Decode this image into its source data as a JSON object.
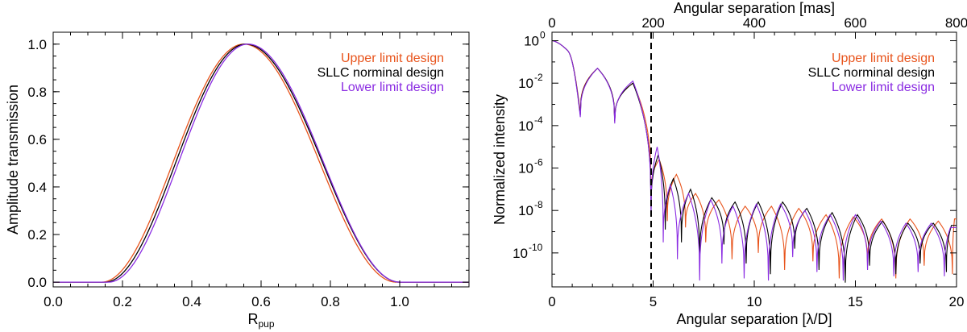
{
  "colors": {
    "upper": "#e8541c",
    "nominal": "#000000",
    "lower": "#8a2be2"
  },
  "chart_data": [
    {
      "type": "line",
      "xlabel": "R",
      "xlabel_sub": "pup",
      "ylabel": "Amplitude transmission",
      "xlim": [
        0.0,
        1.2
      ],
      "ylim": [
        -0.02,
        1.05
      ],
      "x_ticks": [
        0.0,
        0.2,
        0.4,
        0.6,
        0.8,
        1.0
      ],
      "x_tick_labels": [
        "0.0",
        "0.2",
        "0.4",
        "0.6",
        "0.8",
        "1.0"
      ],
      "y_ticks": [
        0.0,
        0.2,
        0.4,
        0.6,
        0.8,
        1.0
      ],
      "y_tick_labels": [
        "0.0",
        "0.2",
        "0.4",
        "0.6",
        "0.8",
        "1.0"
      ],
      "legend_position": "top-right",
      "series": [
        {
          "name": "Upper limit design",
          "color_key": "upper",
          "start": 0.14,
          "peak": 0.55,
          "end": 0.99
        },
        {
          "name": "SLLC norminal design",
          "color_key": "nominal",
          "start": 0.15,
          "peak": 0.556,
          "end": 1.0
        },
        {
          "name": "Lower limit design",
          "color_key": "lower",
          "start": 0.16,
          "peak": 0.562,
          "end": 1.0
        }
      ]
    },
    {
      "type": "line",
      "xlabel": "Angular separation [λ/D]",
      "x2label": "Angular separation [mas]",
      "ylabel": "Normalized intensity",
      "y_scale": "log",
      "xlim": [
        0,
        20
      ],
      "ylim_log10": [
        -11.6,
        0.4
      ],
      "x_ticks": [
        0,
        5,
        10,
        15,
        20
      ],
      "x_tick_labels": [
        "0",
        "5",
        "10",
        "15",
        "20"
      ],
      "x2_ticks_lambdaD": [
        0,
        5,
        10,
        15,
        20
      ],
      "x2_tick_labels": [
        "0",
        "200",
        "400",
        "600",
        "800"
      ],
      "y_ticks_log10": [
        0,
        -2,
        -4,
        -6,
        -8,
        -10
      ],
      "y_tick_mantissa": "10",
      "y_tick_exponents": [
        "0",
        "-2",
        "-4",
        "-6",
        "-8",
        "-10"
      ],
      "vline_x": 4.9,
      "legend_position": "top-right",
      "series": [
        {
          "name": "Upper limit design",
          "color_key": "upper",
          "nulls": [
            1.4,
            3.1,
            4.9,
            5.7,
            6.6,
            7.6,
            8.9,
            10.2,
            11.5,
            12.9,
            14.2,
            15.6,
            17.0,
            18.4,
            19.8
          ],
          "null_depth": [
            -3.4,
            -3.8,
            -7.2,
            -8.5,
            -8.8,
            -9.5,
            -10.3,
            -10.0,
            -10.8,
            -10.4,
            -11.2,
            -10.5,
            -11.2,
            -10.6,
            -11.0
          ],
          "peak_values": [
            0.0,
            -1.3,
            -2.0,
            -5.6,
            -6.3,
            -7.2,
            -7.5,
            -7.8,
            -7.8,
            -7.9,
            -8.2,
            -8.3,
            -8.4,
            -8.4,
            -8.5,
            -8.4
          ]
        },
        {
          "name": "SLLC norminal design",
          "color_key": "nominal",
          "nulls": [
            1.4,
            3.1,
            4.9,
            5.6,
            6.4,
            7.3,
            8.5,
            9.6,
            10.8,
            12.0,
            13.2,
            14.5,
            15.7,
            17.0,
            18.2,
            19.5
          ],
          "null_depth": [
            -3.5,
            -3.8,
            -8.0,
            -8.9,
            -9.5,
            -10.3,
            -9.6,
            -10.5,
            -11.0,
            -9.8,
            -10.8,
            -11.4,
            -10.6,
            -11.0,
            -10.5,
            -10.9
          ],
          "peak_values": [
            0.0,
            -1.3,
            -2.0,
            -5.4,
            -6.5,
            -7.0,
            -7.4,
            -7.6,
            -7.6,
            -7.6,
            -7.9,
            -8.1,
            -8.2,
            -8.5,
            -8.6,
            -8.6,
            -8.7
          ]
        },
        {
          "name": "Lower limit design",
          "color_key": "lower",
          "nulls": [
            1.4,
            3.1,
            4.9,
            5.5,
            6.2,
            7.3,
            8.4,
            9.5,
            10.7,
            11.9,
            13.1,
            14.4,
            15.6,
            16.9,
            18.1,
            19.4
          ],
          "null_depth": [
            -3.6,
            -3.9,
            -8.2,
            -9.5,
            -10.3,
            -11.3,
            -10.5,
            -11.2,
            -11.3,
            -10.2,
            -10.9,
            -11.3,
            -10.8,
            -11.1,
            -10.9,
            -11.1
          ],
          "peak_values": [
            0.0,
            -1.3,
            -1.9,
            -5.0,
            -6.8,
            -7.2,
            -7.5,
            -7.8,
            -7.7,
            -7.7,
            -8.0,
            -8.2,
            -8.2,
            -8.5,
            -8.6,
            -8.6,
            -8.8
          ]
        }
      ]
    }
  ]
}
